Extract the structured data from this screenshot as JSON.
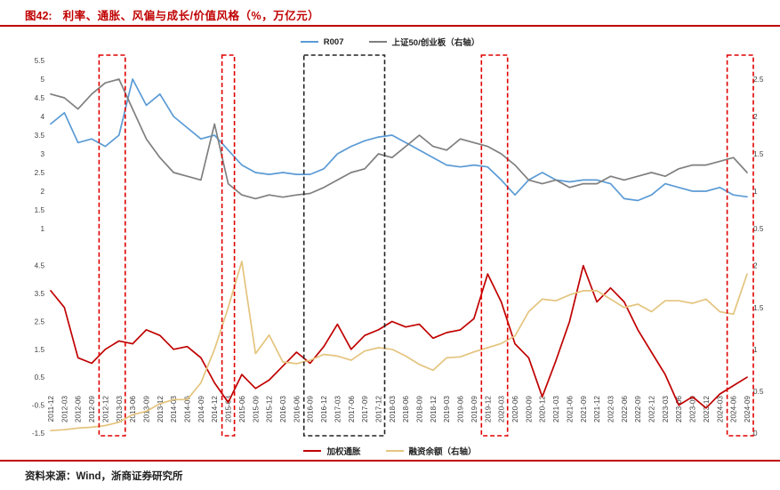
{
  "header": {
    "figure_label": "图42:",
    "title": "利率、通胀、风偏与成长/价值风格（%，万亿元）"
  },
  "footer": {
    "source": "资料来源：Wind，浙商证券研究所"
  },
  "accent_color": "#c00000",
  "legend_top": [
    {
      "label": "R007",
      "color": "#5b9bd5"
    },
    {
      "label": "上证50/创业板（右轴）",
      "color": "#7f7f7f"
    }
  ],
  "legend_bottom": [
    {
      "label": "加权通胀",
      "color": "#c00000"
    },
    {
      "label": "融资余额（右轴）",
      "color": "#e4c47e"
    }
  ],
  "chart_data": {
    "type": "line",
    "title": "利率、通胀、风偏与成长/价值风格（%，万亿元）",
    "x_labels": [
      "2011-12",
      "2012-03",
      "2012-06",
      "2012-09",
      "2012-12",
      "2013-03",
      "2013-06",
      "2013-09",
      "2013-12",
      "2014-03",
      "2014-06",
      "2014-09",
      "2014-12",
      "2015-03",
      "2015-06",
      "2015-09",
      "2015-12",
      "2016-03",
      "2016-06",
      "2016-09",
      "2016-12",
      "2017-03",
      "2017-06",
      "2017-09",
      "2017-12",
      "2018-03",
      "2018-06",
      "2018-09",
      "2018-12",
      "2019-03",
      "2019-06",
      "2019-09",
      "2019-12",
      "2020-03",
      "2020-06",
      "2020-09",
      "2020-12",
      "2021-03",
      "2021-06",
      "2021-09",
      "2021-12",
      "2022-03",
      "2022-06",
      "2022-09",
      "2022-12",
      "2023-03",
      "2023-06",
      "2023-09",
      "2023-12",
      "2024-03",
      "2024-06",
      "2024-09"
    ],
    "panels": [
      {
        "position": "top",
        "left_axis": {
          "range": [
            1,
            5.5
          ],
          "ticks": [
            5.5,
            5,
            4.5,
            4,
            3.5,
            3,
            2.5,
            2,
            1.5,
            1
          ]
        },
        "right_axis": {
          "range": [
            0.5,
            2.75
          ],
          "ticks": [
            2.5,
            2,
            1.5,
            1,
            0.5
          ]
        },
        "series": [
          {
            "name": "R007",
            "axis": "left",
            "color": "#5b9bd5",
            "values": [
              3.8,
              4.1,
              3.3,
              3.4,
              3.2,
              3.5,
              5.0,
              4.3,
              4.6,
              4.0,
              3.7,
              3.4,
              3.5,
              3.1,
              2.7,
              2.5,
              2.45,
              2.5,
              2.45,
              2.45,
              2.6,
              3.0,
              3.2,
              3.35,
              3.45,
              3.5,
              3.3,
              3.1,
              2.9,
              2.7,
              2.65,
              2.7,
              2.65,
              2.3,
              1.9,
              2.3,
              2.5,
              2.3,
              2.25,
              2.3,
              2.3,
              2.2,
              1.8,
              1.75,
              1.9,
              2.2,
              2.1,
              2.0,
              2.0,
              2.1,
              1.9,
              1.85
            ]
          },
          {
            "name": "上证50/创业板（右轴）",
            "axis": "right",
            "color": "#7f7f7f",
            "values": [
              2.3,
              2.25,
              2.1,
              2.3,
              2.45,
              2.5,
              2.1,
              1.7,
              1.45,
              1.25,
              1.2,
              1.15,
              1.9,
              1.1,
              0.95,
              0.9,
              0.95,
              0.92,
              0.95,
              0.97,
              1.05,
              1.15,
              1.25,
              1.3,
              1.5,
              1.45,
              1.6,
              1.75,
              1.6,
              1.55,
              1.7,
              1.65,
              1.6,
              1.5,
              1.35,
              1.15,
              1.1,
              1.15,
              1.05,
              1.1,
              1.1,
              1.2,
              1.15,
              1.2,
              1.25,
              1.2,
              1.3,
              1.35,
              1.35,
              1.4,
              1.45,
              1.25
            ]
          }
        ]
      },
      {
        "position": "bottom",
        "left_axis": {
          "range": [
            -1.5,
            5.0
          ],
          "ticks": [
            4.5,
            3.5,
            2.5,
            1.5,
            0.5,
            -0.5,
            -1.5
          ]
        },
        "right_axis": {
          "range": [
            0,
            2.1667
          ],
          "ticks": [
            2,
            1.5,
            1,
            0.5,
            0
          ]
        },
        "series": [
          {
            "name": "加权通胀",
            "axis": "left",
            "color": "#c00000",
            "values": [
              3.6,
              3.0,
              1.2,
              1.0,
              1.5,
              1.8,
              1.7,
              2.2,
              2.0,
              1.5,
              1.6,
              1.2,
              0.3,
              -0.4,
              0.6,
              0.1,
              0.4,
              0.9,
              1.4,
              1.0,
              1.6,
              2.4,
              1.5,
              2.0,
              2.2,
              2.5,
              2.3,
              2.4,
              1.9,
              2.1,
              2.2,
              2.6,
              4.2,
              3.2,
              1.7,
              1.2,
              -0.2,
              1.1,
              2.5,
              4.5,
              3.2,
              3.7,
              3.2,
              2.2,
              1.4,
              0.6,
              -0.5,
              -0.2,
              -0.6,
              -0.1,
              0.2,
              0.5
            ]
          },
          {
            "name": "融资余额（右轴）",
            "axis": "right",
            "color": "#e4c47e",
            "values": [
              0.03,
              0.04,
              0.06,
              0.07,
              0.09,
              0.13,
              0.22,
              0.26,
              0.35,
              0.4,
              0.4,
              0.6,
              1.0,
              1.5,
              2.05,
              0.95,
              1.17,
              0.85,
              0.83,
              0.87,
              0.94,
              0.92,
              0.87,
              0.98,
              1.02,
              1.0,
              0.92,
              0.82,
              0.75,
              0.9,
              0.91,
              0.97,
              1.02,
              1.07,
              1.16,
              1.45,
              1.6,
              1.58,
              1.65,
              1.7,
              1.7,
              1.6,
              1.5,
              1.54,
              1.45,
              1.58,
              1.58,
              1.55,
              1.6,
              1.45,
              1.42,
              1.9
            ]
          }
        ]
      }
    ],
    "highlight_boxes": [
      {
        "start": "2012-12",
        "end": "2013-03",
        "color": "#e00000",
        "style": "dashed"
      },
      {
        "start": "2015-03",
        "end": "2015-03",
        "color": "#e00000",
        "style": "dashed"
      },
      {
        "start": "2016-09",
        "end": "2017-12",
        "color": "#222222",
        "style": "dashed"
      },
      {
        "start": "2019-12",
        "end": "2020-03",
        "color": "#e00000",
        "style": "dashed"
      },
      {
        "start": "2024-06",
        "end": "2024-09",
        "color": "#e00000",
        "style": "dashed"
      }
    ],
    "legend_position": "top-and-bottom",
    "grid": false
  }
}
